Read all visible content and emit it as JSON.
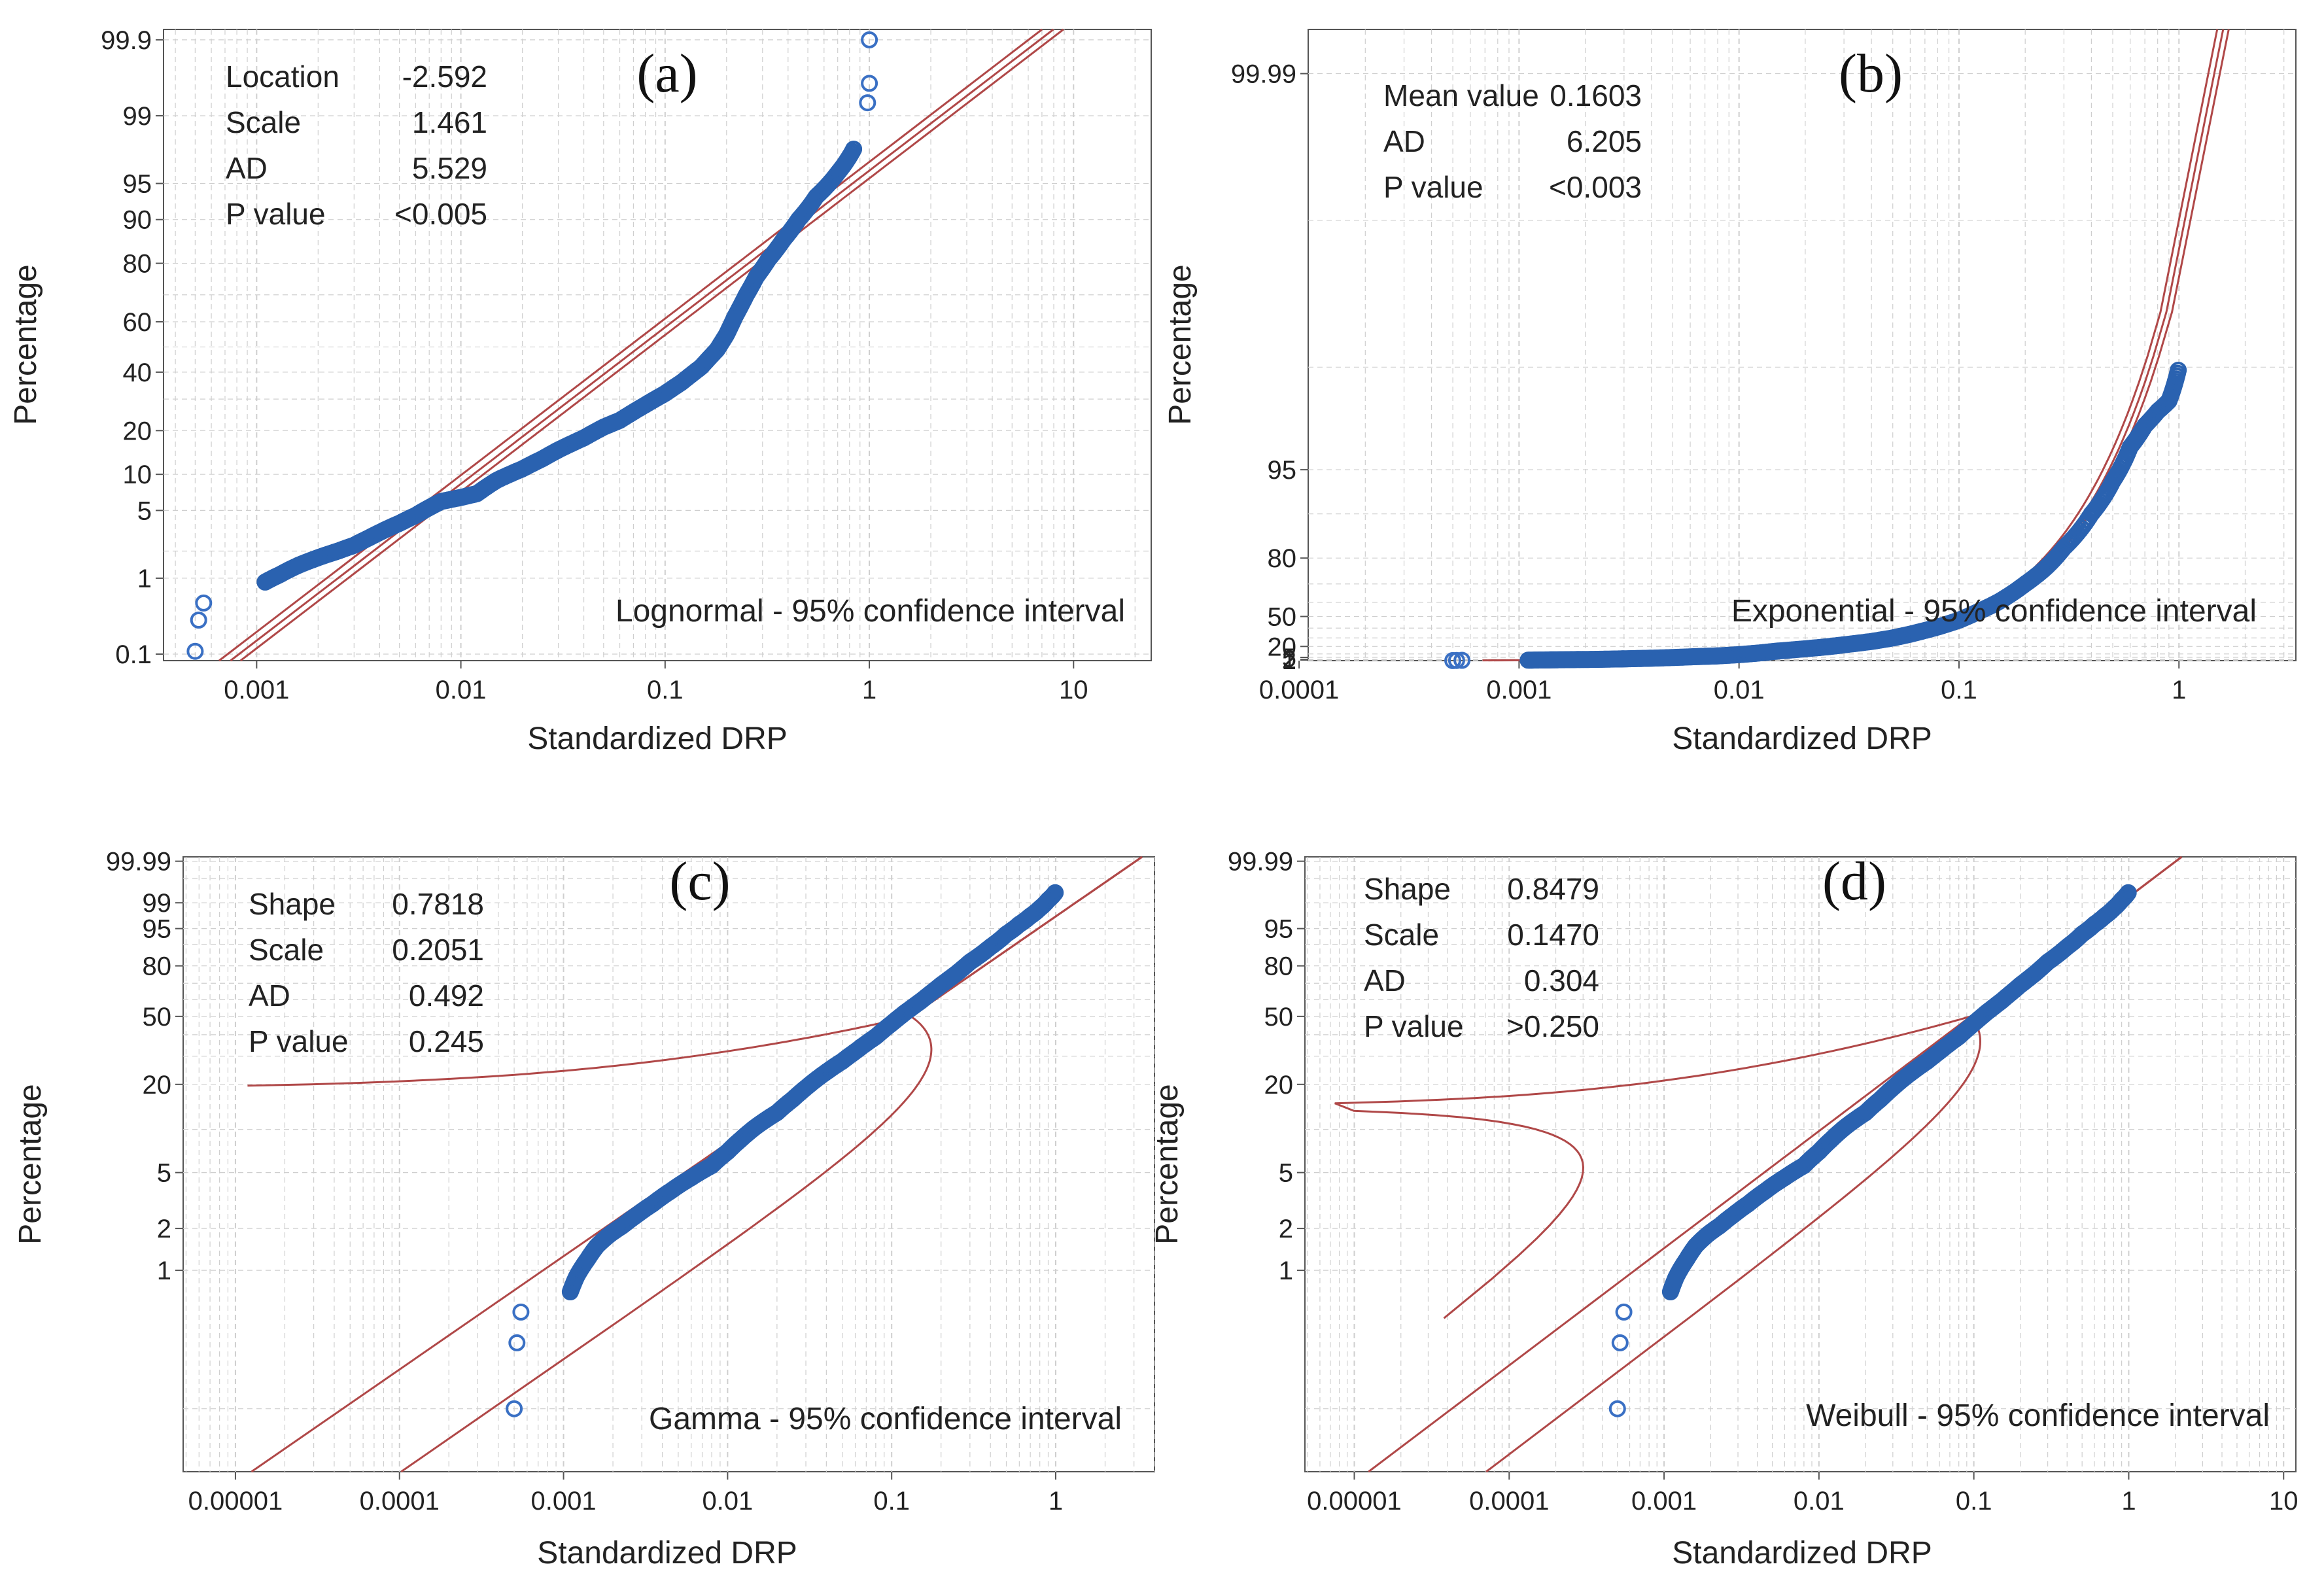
{
  "chart_data": [
    {
      "type": "scatter",
      "panel_label": "(a)",
      "xlabel": "Standardized DRP",
      "ylabel": "Percentage",
      "distribution": "Lognormal",
      "legend": "Lognormal - 95% confidence interval",
      "x_scale": "log",
      "x_range": [
        0.00035,
        24
      ],
      "x_ticks": [
        "0.001",
        "0.01",
        "0.1",
        "1",
        "10"
      ],
      "y_ticks": [
        "0.1",
        "1",
        "5",
        "10",
        "20",
        "40",
        "60",
        "80",
        "90",
        "95",
        "99",
        "99.9"
      ],
      "stats": [
        {
          "label": "Location",
          "value": "-2.592"
        },
        {
          "label": "Scale",
          "value": "1.461"
        },
        {
          "label": "AD",
          "value": "5.529"
        },
        {
          "label": "P value",
          "value": "<0.005"
        }
      ],
      "fit_line": {
        "x_at_p50": 0.0747,
        "x_at_p0_1": 0.00081,
        "x_at_p99_9": 6.9
      },
      "ci_band": "narrow",
      "outliers": [
        {
          "x": 0.0005,
          "p": 0.11
        },
        {
          "x": 0.00052,
          "p": 0.3
        },
        {
          "x": 0.00055,
          "p": 0.5
        },
        {
          "x": 1.0,
          "p": 99.9
        },
        {
          "x": 1.0,
          "p": 99.6
        },
        {
          "x": 0.98,
          "p": 99.3
        }
      ],
      "points": [
        [
          0.0011,
          0.9
        ],
        [
          0.0013,
          1.1
        ],
        [
          0.0016,
          1.4
        ],
        [
          0.002,
          1.7
        ],
        [
          0.0025,
          2.0
        ],
        [
          0.003,
          2.3
        ],
        [
          0.0035,
          2.7
        ],
        [
          0.004,
          3.1
        ],
        [
          0.005,
          3.8
        ],
        [
          0.006,
          4.5
        ],
        [
          0.007,
          5.3
        ],
        [
          0.008,
          6.0
        ],
        [
          0.01,
          6.5
        ],
        [
          0.012,
          7.0
        ],
        [
          0.015,
          9.0
        ],
        [
          0.02,
          11.0
        ],
        [
          0.025,
          13.0
        ],
        [
          0.03,
          15.0
        ],
        [
          0.04,
          18.0
        ],
        [
          0.05,
          21.0
        ],
        [
          0.06,
          23.0
        ],
        [
          0.08,
          28.0
        ],
        [
          0.1,
          32.0
        ],
        [
          0.12,
          36.0
        ],
        [
          0.15,
          42.0
        ],
        [
          0.18,
          49.0
        ],
        [
          0.2,
          55.0
        ],
        [
          0.22,
          62.0
        ],
        [
          0.25,
          70.0
        ],
        [
          0.28,
          76.0
        ],
        [
          0.32,
          81.0
        ],
        [
          0.38,
          86.0
        ],
        [
          0.45,
          90.0
        ],
        [
          0.55,
          93.5
        ],
        [
          0.7,
          96.0
        ],
        [
          0.85,
          97.8
        ]
      ]
    },
    {
      "type": "scatter",
      "panel_label": "(b)",
      "xlabel": "Standardized DRP",
      "ylabel": "Percentage",
      "distribution": "Exponential",
      "legend": "Exponential - 95% confidence interval",
      "x_scale": "log",
      "x_range": [
        0.00011,
        3.4
      ],
      "x_ticks": [
        "0.0001",
        "0.001",
        "0.01",
        "0.1",
        "1"
      ],
      "y_ticks": [
        "1",
        "2",
        "5",
        "20",
        "50",
        "80",
        "95",
        "99.99"
      ],
      "stats": [
        {
          "label": "Mean value",
          "value": "0.1603"
        },
        {
          "label": "AD",
          "value": "6.205"
        },
        {
          "label": "P value",
          "value": "<0.003"
        }
      ],
      "fit_line": {
        "mean": 0.1603
      },
      "ci_band": "narrow",
      "outliers": [
        {
          "x": 0.0005,
          "p": 0.1
        },
        {
          "x": 0.00052,
          "p": 0.3
        },
        {
          "x": 0.00055,
          "p": 0.5
        }
      ],
      "points": [
        [
          0.0011,
          0.8
        ],
        [
          0.0013,
          1.1
        ],
        [
          0.0015,
          1.4
        ],
        [
          0.0018,
          1.7
        ],
        [
          0.0022,
          2.0
        ],
        [
          0.0027,
          2.5
        ],
        [
          0.003,
          2.8
        ],
        [
          0.0035,
          3.3
        ],
        [
          0.004,
          3.8
        ],
        [
          0.005,
          4.8
        ],
        [
          0.006,
          5.8
        ],
        [
          0.007,
          6.6
        ],
        [
          0.008,
          7.2
        ],
        [
          0.01,
          9.0
        ],
        [
          0.012,
          11.0
        ],
        [
          0.015,
          14.0
        ],
        [
          0.02,
          17.0
        ],
        [
          0.025,
          19.5
        ],
        [
          0.03,
          22.0
        ],
        [
          0.04,
          26.0
        ],
        [
          0.05,
          30.0
        ],
        [
          0.06,
          34.0
        ],
        [
          0.08,
          41.0
        ],
        [
          0.1,
          47.0
        ],
        [
          0.12,
          53.0
        ],
        [
          0.15,
          60.0
        ],
        [
          0.2,
          70.0
        ],
        [
          0.25,
          77.0
        ],
        [
          0.3,
          83.0
        ],
        [
          0.4,
          90.0
        ],
        [
          0.5,
          94.0
        ],
        [
          0.6,
          96.5
        ],
        [
          0.7,
          97.5
        ],
        [
          0.8,
          98.0
        ],
        [
          0.9,
          98.3
        ],
        [
          1.0,
          99.0
        ]
      ]
    },
    {
      "type": "scatter",
      "panel_label": "(c)",
      "xlabel": "Standardized DRP",
      "ylabel": "Percentage",
      "distribution": "Gamma",
      "legend": "Gamma - 95% confidence interval",
      "x_scale": "log",
      "x_range": [
        4.8e-06,
        4.0
      ],
      "x_ticks": [
        "0.00001",
        "0.0001",
        "0.001",
        "0.01",
        "0.1",
        "1"
      ],
      "y_ticks": [
        "1",
        "2",
        "5",
        "20",
        "50",
        "80",
        "95",
        "99",
        "99.99"
      ],
      "stats": [
        {
          "label": "Shape",
          "value": "0.7818"
        },
        {
          "label": "Scale",
          "value": "0.2051"
        },
        {
          "label": "AD",
          "value": "0.492"
        },
        {
          "label": "P value",
          "value": "0.245"
        }
      ],
      "fit_line": {
        "shape": 0.7818,
        "scale": 0.2051
      },
      "ci_band": "wide at low end",
      "outliers": [
        {
          "x": 0.0005,
          "p": 0.1
        },
        {
          "x": 0.00052,
          "p": 0.3
        },
        {
          "x": 0.00055,
          "p": 0.5
        }
      ],
      "points": [
        [
          0.0011,
          0.7
        ],
        [
          0.0012,
          0.9
        ],
        [
          0.0014,
          1.2
        ],
        [
          0.0016,
          1.5
        ],
        [
          0.0019,
          1.8
        ],
        [
          0.0023,
          2.1
        ],
        [
          0.0028,
          2.5
        ],
        [
          0.0035,
          3.0
        ],
        [
          0.0045,
          3.7
        ],
        [
          0.006,
          4.6
        ],
        [
          0.008,
          5.6
        ],
        [
          0.01,
          7.0
        ],
        [
          0.012,
          8.5
        ],
        [
          0.015,
          10.5
        ],
        [
          0.02,
          13.0
        ],
        [
          0.025,
          16.0
        ],
        [
          0.03,
          19.0
        ],
        [
          0.04,
          24.0
        ],
        [
          0.05,
          28.0
        ],
        [
          0.06,
          32.0
        ],
        [
          0.08,
          39.0
        ],
        [
          0.1,
          46.0
        ],
        [
          0.12,
          52.0
        ],
        [
          0.15,
          59.0
        ],
        [
          0.2,
          69.0
        ],
        [
          0.25,
          76.0
        ],
        [
          0.3,
          82.0
        ],
        [
          0.4,
          89.0
        ],
        [
          0.5,
          93.5
        ],
        [
          0.6,
          96.0
        ],
        [
          0.7,
          97.5
        ],
        [
          0.8,
          98.5
        ],
        [
          0.9,
          99.2
        ],
        [
          1.0,
          99.6
        ]
      ]
    },
    {
      "type": "scatter",
      "panel_label": "(d)",
      "xlabel": "Standardized DRP",
      "ylabel": "Percentage",
      "distribution": "Weibull",
      "legend": "Weibull - 95% confidence interval",
      "x_scale": "log",
      "x_range": [
        4.8e-06,
        12
      ],
      "x_ticks": [
        "0.00001",
        "0.0001",
        "0.001",
        "0.01",
        "0.1",
        "1",
        "10"
      ],
      "y_ticks": [
        "1",
        "2",
        "5",
        "20",
        "50",
        "80",
        "95",
        "99.99"
      ],
      "stats": [
        {
          "label": "Shape",
          "value": "0.8479"
        },
        {
          "label": "Scale",
          "value": "0.1470"
        },
        {
          "label": "AD",
          "value": "0.304"
        },
        {
          "label": "P value",
          "value": ">0.250"
        }
      ],
      "fit_line": {
        "shape": 0.8479,
        "scale": 0.147
      },
      "ci_band": "wide at low end",
      "outliers": [
        {
          "x": 0.0005,
          "p": 0.1
        },
        {
          "x": 0.00052,
          "p": 0.3
        },
        {
          "x": 0.00055,
          "p": 0.5
        }
      ],
      "points": [
        [
          0.0011,
          0.7
        ],
        [
          0.0012,
          0.9
        ],
        [
          0.0014,
          1.2
        ],
        [
          0.0016,
          1.5
        ],
        [
          0.0019,
          1.8
        ],
        [
          0.0023,
          2.1
        ],
        [
          0.0028,
          2.5
        ],
        [
          0.0035,
          3.0
        ],
        [
          0.0045,
          3.7
        ],
        [
          0.006,
          4.6
        ],
        [
          0.008,
          5.6
        ],
        [
          0.01,
          7.0
        ],
        [
          0.012,
          8.5
        ],
        [
          0.015,
          10.5
        ],
        [
          0.02,
          13.0
        ],
        [
          0.025,
          16.0
        ],
        [
          0.03,
          19.0
        ],
        [
          0.04,
          24.0
        ],
        [
          0.05,
          28.0
        ],
        [
          0.06,
          32.0
        ],
        [
          0.08,
          39.0
        ],
        [
          0.1,
          46.0
        ],
        [
          0.12,
          52.0
        ],
        [
          0.15,
          59.0
        ],
        [
          0.2,
          69.0
        ],
        [
          0.25,
          76.0
        ],
        [
          0.3,
          82.0
        ],
        [
          0.4,
          89.0
        ],
        [
          0.5,
          93.5
        ],
        [
          0.6,
          96.0
        ],
        [
          0.7,
          97.5
        ],
        [
          0.8,
          98.5
        ],
        [
          0.9,
          99.2
        ],
        [
          1.0,
          99.6
        ]
      ]
    }
  ],
  "colors": {
    "points": "#2a62b0",
    "outlier_points": "#3a70c4",
    "fit_lines": "#b04848",
    "grid": "#cfcfcf",
    "axes": "#555555",
    "text": "#222222"
  }
}
